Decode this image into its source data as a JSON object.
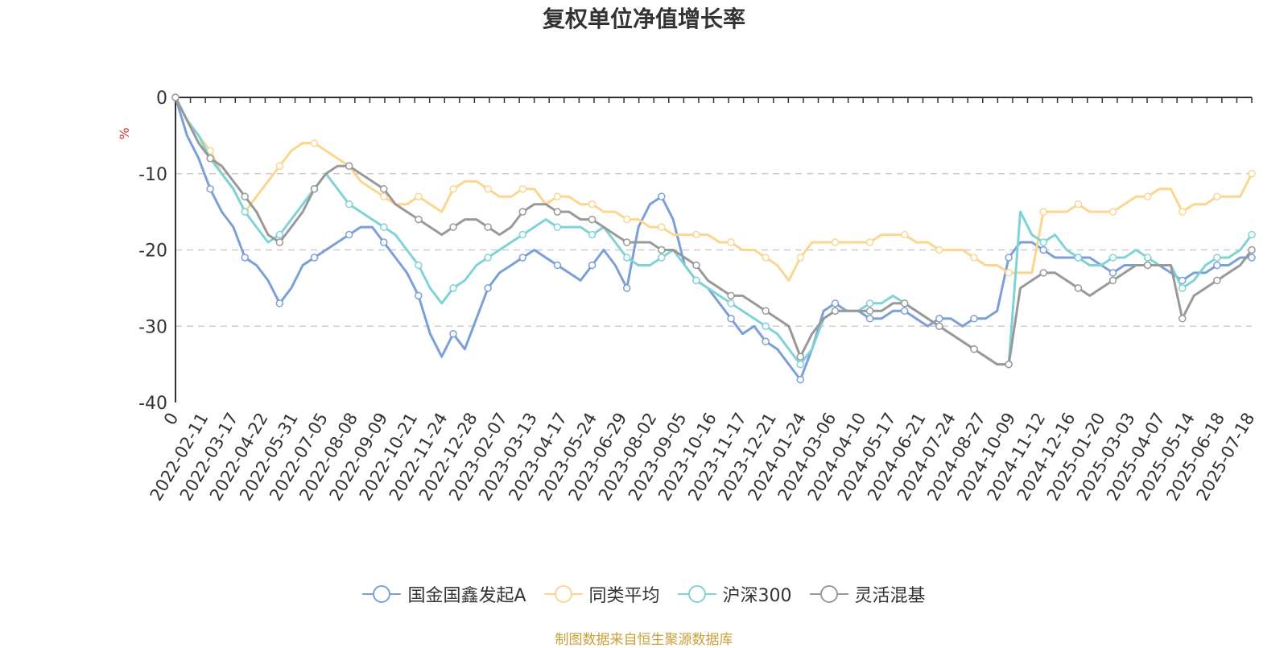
{
  "chart_data": {
    "type": "line",
    "title": "复权单位净值增长率",
    "ylabel": "%",
    "ylim": [
      -40,
      0
    ],
    "yticks": [
      "0",
      "-10",
      "-20",
      "-30",
      "-40"
    ],
    "yticks_values": [
      0,
      -10,
      -20,
      -30,
      -40
    ],
    "x_ticks": [
      "0",
      "2022-02-11",
      "2022-03-17",
      "2022-04-22",
      "2022-05-31",
      "2022-07-05",
      "2022-08-08",
      "2022-09-09",
      "2022-10-21",
      "2022-11-24",
      "2022-12-28",
      "2023-02-07",
      "2023-03-13",
      "2023-04-17",
      "2023-05-24",
      "2023-06-29",
      "2023-08-02",
      "2023-09-05",
      "2023-10-16",
      "2023-11-17",
      "2023-12-21",
      "2024-01-24",
      "2024-03-06",
      "2024-04-10",
      "2024-05-17",
      "2024-06-21",
      "2024-07-24",
      "2024-08-27",
      "2024-10-09",
      "2024-11-12",
      "2024-12-16",
      "2025-01-20",
      "2025-03-03",
      "2025-04-07",
      "2025-05-14",
      "2025-06-18",
      "2025-07-18"
    ],
    "grid": "dashed horizontal",
    "legend_position": "bottom",
    "series": [
      {
        "name": "国金国鑫发起A",
        "color": "#7b9fd8",
        "values": [
          0,
          -5,
          -8,
          -12,
          -15,
          -17,
          -21,
          -22,
          -24,
          -27,
          -25,
          -22,
          -21,
          -20,
          -19,
          -18,
          -17,
          -17,
          -19,
          -21,
          -23,
          -26,
          -31,
          -34,
          -31,
          -33,
          -29,
          -25,
          -23,
          -22,
          -21,
          -20,
          -21,
          -22,
          -23,
          -24,
          -22,
          -20,
          -22,
          -25,
          -17,
          -14,
          -13,
          -16,
          -22,
          -24,
          -25,
          -27,
          -29,
          -31,
          -30,
          -32,
          -33,
          -35,
          -37,
          -33,
          -28,
          -27,
          -28,
          -28,
          -29,
          -29,
          -28,
          -28,
          -29,
          -30,
          -29,
          -29,
          -30,
          -29,
          -29,
          -28,
          -21,
          -19,
          -19,
          -20,
          -21,
          -21,
          -21,
          -21,
          -22,
          -23,
          -22,
          -22,
          -22,
          -22,
          -23,
          -24,
          -23,
          -23,
          -22,
          -22,
          -21,
          -21
        ]
      },
      {
        "name": "同类平均",
        "color": "#fcd58f",
        "values": [
          0,
          -3,
          -5,
          -7,
          -10,
          -12,
          -15,
          -13,
          -11,
          -9,
          -7,
          -6,
          -6,
          -7,
          -8,
          -9,
          -11,
          -12,
          -13,
          -14,
          -14,
          -13,
          -14,
          -15,
          -12,
          -11,
          -11,
          -12,
          -13,
          -13,
          -12,
          -12,
          -14,
          -13,
          -13,
          -14,
          -14,
          -15,
          -15,
          -16,
          -16,
          -17,
          -17,
          -18,
          -18,
          -18,
          -18,
          -19,
          -19,
          -20,
          -20,
          -21,
          -22,
          -24,
          -21,
          -19,
          -19,
          -19,
          -19,
          -19,
          -19,
          -18,
          -18,
          -18,
          -19,
          -19,
          -20,
          -20,
          -20,
          -21,
          -22,
          -22,
          -23,
          -23,
          -23,
          -15,
          -15,
          -15,
          -14,
          -15,
          -15,
          -15,
          -14,
          -13,
          -13,
          -12,
          -12,
          -15,
          -14,
          -14,
          -13,
          -13,
          -13,
          -10
        ]
      },
      {
        "name": "沪深300",
        "color": "#7fd3d6",
        "values": [
          0,
          -3,
          -5,
          -8,
          -10,
          -12,
          -15,
          -17,
          -19,
          -18,
          -16,
          -14,
          -12,
          -10,
          -12,
          -14,
          -15,
          -16,
          -17,
          -18,
          -20,
          -22,
          -25,
          -27,
          -25,
          -24,
          -22,
          -21,
          -20,
          -19,
          -18,
          -17,
          -16,
          -17,
          -17,
          -17,
          -18,
          -17,
          -19,
          -21,
          -22,
          -22,
          -21,
          -20,
          -22,
          -24,
          -25,
          -26,
          -27,
          -28,
          -29,
          -30,
          -31,
          -33,
          -35,
          -33,
          -29,
          -28,
          -28,
          -28,
          -27,
          -27,
          -26,
          -27,
          -28,
          -29,
          -30,
          -31,
          -32,
          -33,
          -34,
          -35,
          -35,
          -15,
          -18,
          -19,
          -18,
          -20,
          -21,
          -22,
          -22,
          -21,
          -21,
          -20,
          -21,
          -22,
          -22,
          -25,
          -24,
          -22,
          -21,
          -21,
          -20,
          -18
        ]
      },
      {
        "name": "灵活混基",
        "color": "#999999",
        "values": [
          0,
          -3,
          -6,
          -8,
          -9,
          -11,
          -13,
          -15,
          -18,
          -19,
          -17,
          -15,
          -12,
          -10,
          -9,
          -9,
          -10,
          -11,
          -12,
          -14,
          -15,
          -16,
          -17,
          -18,
          -17,
          -16,
          -16,
          -17,
          -18,
          -17,
          -15,
          -14,
          -14,
          -15,
          -15,
          -16,
          -16,
          -17,
          -18,
          -19,
          -19,
          -19,
          -20,
          -20,
          -21,
          -22,
          -24,
          -25,
          -26,
          -26,
          -27,
          -28,
          -29,
          -30,
          -34,
          -31,
          -29,
          -28,
          -28,
          -28,
          -28,
          -28,
          -27,
          -27,
          -28,
          -29,
          -30,
          -31,
          -32,
          -33,
          -34,
          -35,
          -35,
          -25,
          -24,
          -23,
          -23,
          -24,
          -25,
          -26,
          -25,
          -24,
          -23,
          -22,
          -22,
          -22,
          -22,
          -29,
          -26,
          -25,
          -24,
          -23,
          -22,
          -20
        ]
      }
    ]
  },
  "footer": {
    "text": "制图数据来自恒生聚源数据库",
    "color": "#c9a03a"
  },
  "y_unit_color": "#e03030"
}
